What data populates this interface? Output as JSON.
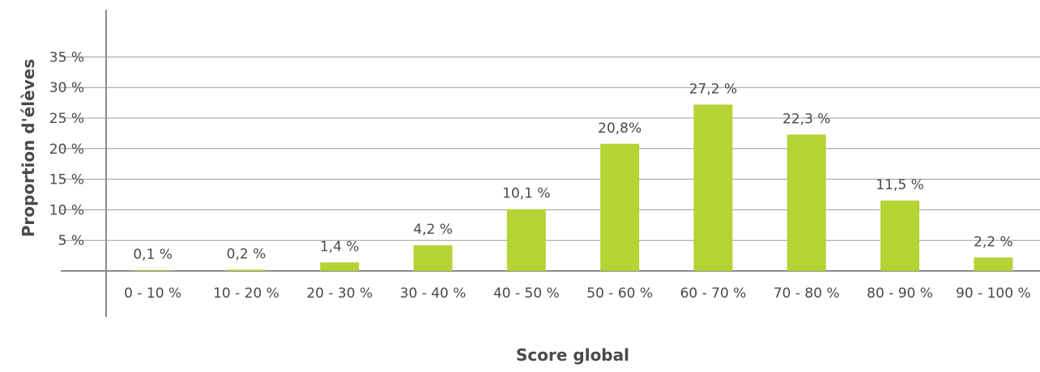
{
  "chart_data": {
    "type": "bar",
    "categories": [
      "0 - 10 %",
      "10 - 20 %",
      "20 - 30 %",
      "30 - 40 %",
      "40 - 50 %",
      "50 - 60 %",
      "60 - 70 %",
      "70 - 80 %",
      "80 - 90 %",
      "90 - 100 %"
    ],
    "values": [
      0.1,
      0.2,
      1.4,
      4.2,
      10.1,
      20.8,
      27.2,
      22.3,
      11.5,
      2.2
    ],
    "value_labels": [
      "0,1 %",
      "0,2 %",
      "1,4 %",
      "4,2 %",
      "10,1 %",
      "20,8%",
      "27,2 %",
      "22,3 %",
      "11,5 %",
      "2,2 %"
    ],
    "title": "",
    "xlabel": "Score global",
    "ylabel": "Proportion d'élèves",
    "ylim": [
      0,
      35
    ],
    "yticks": [
      5,
      10,
      15,
      20,
      25,
      30,
      35
    ],
    "ytick_labels": [
      "5 %",
      "10 %",
      "15 %",
      "20 %",
      "25 %",
      "30 %",
      "35 %"
    ],
    "grid": true,
    "bar_color": "#b5d335"
  }
}
